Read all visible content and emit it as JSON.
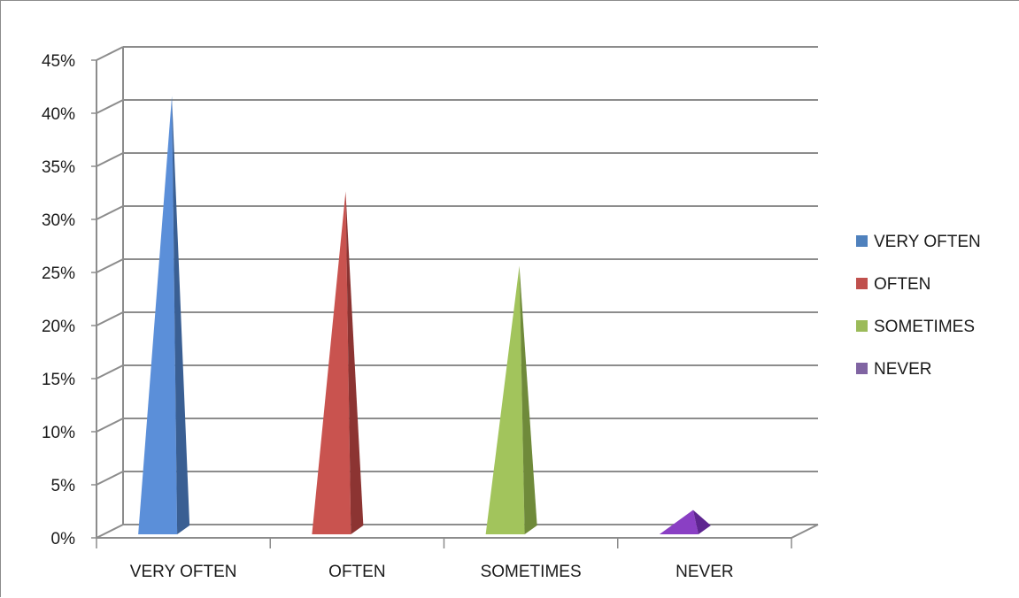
{
  "chart_data": {
    "type": "bar",
    "style": "3d-pyramid",
    "title": "",
    "xlabel": "",
    "ylabel": "",
    "categories": [
      "VERY OFTEN",
      "OFTEN",
      "SOMETIMES",
      "NEVER"
    ],
    "values": [
      41,
      32,
      25,
      2
    ],
    "value_unit": "%",
    "ylim": [
      0,
      45
    ],
    "yticks": [
      "0%",
      "5%",
      "10%",
      "15%",
      "20%",
      "25%",
      "30%",
      "35%",
      "40%",
      "45%"
    ],
    "grid": true,
    "legend_position": "right",
    "legend": [
      {
        "label": "VERY OFTEN",
        "color": "#4F81BD"
      },
      {
        "label": "OFTEN",
        "color": "#C0504D"
      },
      {
        "label": "SOMETIMES",
        "color": "#9BBB59"
      },
      {
        "label": "NEVER",
        "color": "#8064A2"
      }
    ],
    "colors": {
      "VERY OFTEN": {
        "front": "#5B8FD9",
        "side": "#3A5F93"
      },
      "OFTEN": {
        "front": "#C9534F",
        "side": "#8C3432"
      },
      "SOMETIMES": {
        "front": "#A2C45C",
        "side": "#6F8A3A"
      },
      "NEVER": {
        "front": "#8A3FC4",
        "side": "#5E2590"
      }
    }
  }
}
